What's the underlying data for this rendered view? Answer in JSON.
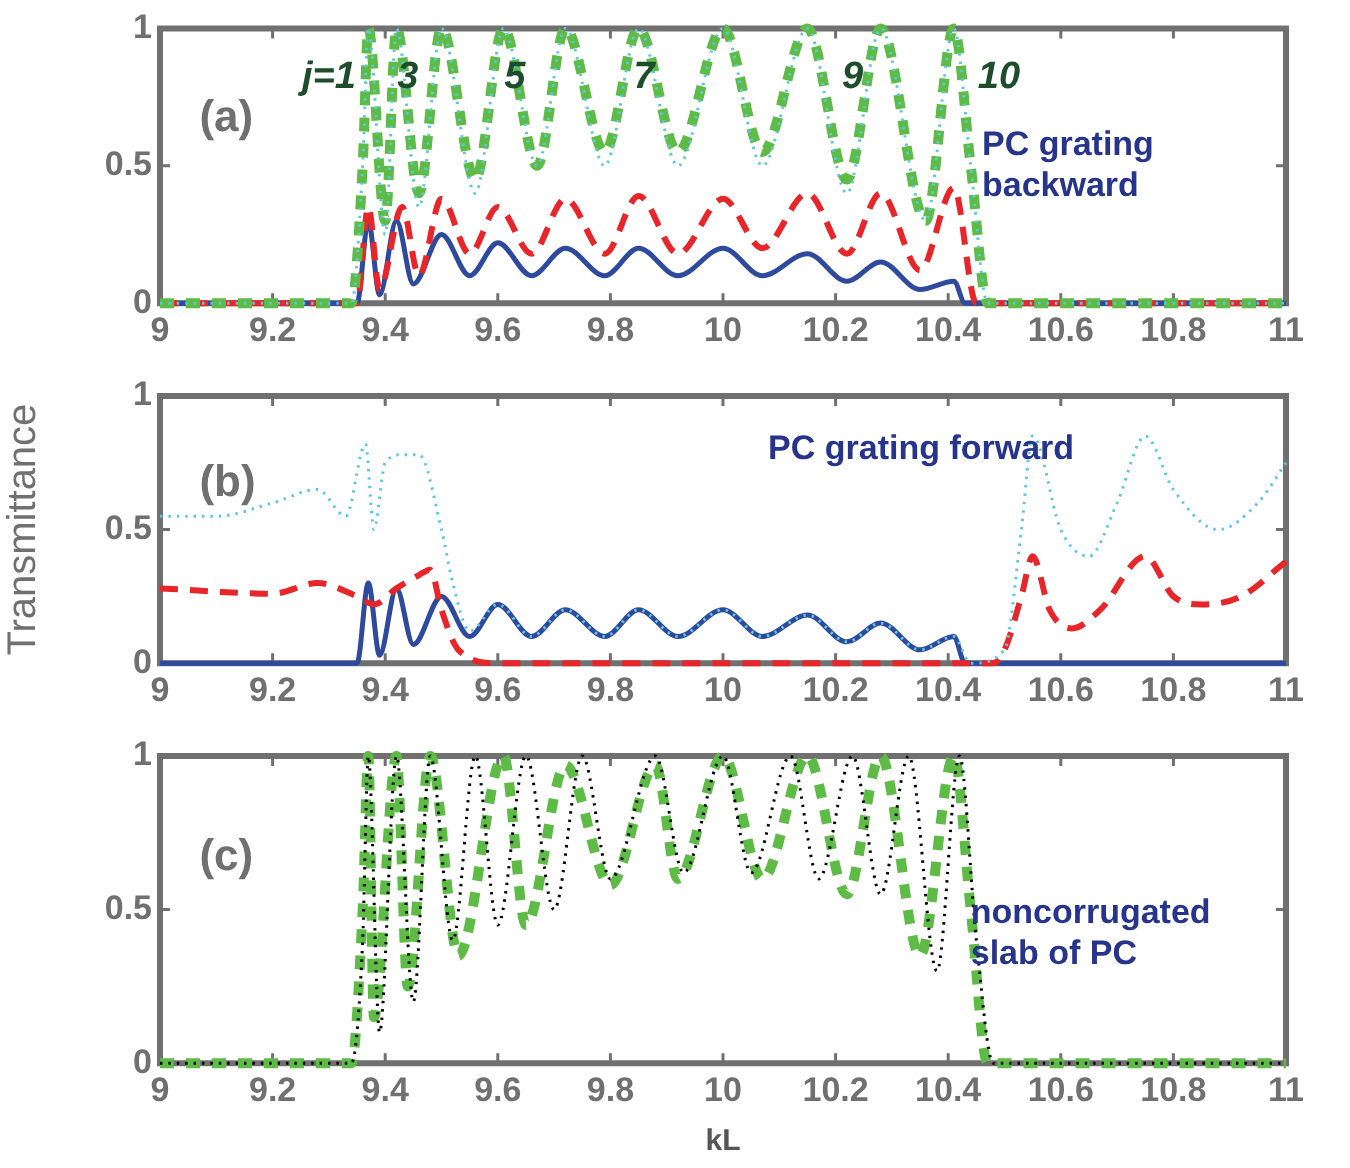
{
  "chart_data": [
    {
      "type": "line",
      "xlim": [
        9,
        11
      ],
      "ylim": [
        0,
        1
      ],
      "xticks": [
        9,
        9.2,
        9.4,
        9.6,
        9.8,
        10,
        10.2,
        10.4,
        10.6,
        10.8,
        11
      ],
      "yticks": [
        0,
        0.5,
        1
      ],
      "grid": false,
      "legend": false,
      "marker": "none",
      "annotations": [
        "(a)",
        "PC grating backward",
        "j=1",
        "3",
        "5",
        "7",
        "9",
        "10"
      ],
      "series": [
        {
          "color": "#5bc8dc",
          "line_style": "dotted",
          "x": [
            9,
            9.34,
            9.36,
            9.37,
            9.4,
            9.42,
            9.46,
            9.5,
            9.56,
            9.61,
            9.67,
            9.72,
            9.79,
            9.85,
            9.92,
            10,
            10.07,
            10.15,
            10.22,
            10.28,
            10.36,
            10.41,
            10.44,
            10.47,
            11
          ],
          "values": [
            0,
            0,
            0.5,
            1,
            0.25,
            1,
            0.35,
            1,
            0.4,
            1,
            0.5,
            1,
            0.5,
            1,
            0.5,
            1,
            0.5,
            1,
            0.4,
            1,
            0.3,
            1,
            0.5,
            0,
            0
          ]
        },
        {
          "color": "#5dbb46",
          "line_style": "dashed",
          "x": [
            9,
            9.34,
            9.36,
            9.37,
            9.4,
            9.42,
            9.46,
            9.5,
            9.56,
            9.61,
            9.67,
            9.72,
            9.79,
            9.85,
            9.92,
            10,
            10.07,
            10.15,
            10.22,
            10.28,
            10.36,
            10.41,
            10.44,
            10.47,
            11
          ],
          "values": [
            0,
            0,
            0.5,
            1,
            0.3,
            1,
            0.4,
            1,
            0.45,
            1,
            0.5,
            1,
            0.55,
            1,
            0.55,
            1,
            0.55,
            1,
            0.45,
            1,
            0.3,
            1,
            0.5,
            0,
            0
          ]
        },
        {
          "color": "#e8262a",
          "line_style": "dashed",
          "x": [
            9,
            9.35,
            9.37,
            9.39,
            9.43,
            9.46,
            9.5,
            9.55,
            9.6,
            9.66,
            9.72,
            9.79,
            9.85,
            9.92,
            10,
            10.07,
            10.15,
            10.22,
            10.28,
            10.35,
            10.41,
            10.45,
            11
          ],
          "values": [
            0,
            0,
            0.35,
            0.05,
            0.35,
            0.1,
            0.38,
            0.18,
            0.35,
            0.18,
            0.38,
            0.18,
            0.39,
            0.18,
            0.38,
            0.2,
            0.4,
            0.18,
            0.4,
            0.12,
            0.42,
            0,
            0
          ]
        },
        {
          "color": "#2e4a9e",
          "line_style": "solid",
          "x": [
            9,
            9.35,
            9.37,
            9.39,
            9.42,
            9.45,
            9.5,
            9.55,
            9.6,
            9.66,
            9.72,
            9.79,
            9.85,
            9.92,
            10,
            10.07,
            10.15,
            10.22,
            10.28,
            10.35,
            10.41,
            10.43,
            11
          ],
          "values": [
            0,
            0,
            0.3,
            0.03,
            0.3,
            0.07,
            0.25,
            0.1,
            0.22,
            0.1,
            0.2,
            0.1,
            0.2,
            0.1,
            0.2,
            0.1,
            0.18,
            0.08,
            0.15,
            0.05,
            0.08,
            0,
            0
          ]
        }
      ]
    },
    {
      "type": "line",
      "ylabel": "Transmittance",
      "xlim": [
        9,
        11
      ],
      "ylim": [
        0,
        1
      ],
      "xticks": [
        9,
        9.2,
        9.4,
        9.6,
        9.8,
        10,
        10.2,
        10.4,
        10.6,
        10.8,
        11
      ],
      "yticks": [
        0,
        0.5,
        1
      ],
      "grid": false,
      "legend": false,
      "marker": "none",
      "annotations": [
        "(b)",
        "PC grating forward"
      ],
      "series": [
        {
          "color": "#5bc8dc",
          "line_style": "dotted",
          "x": [
            9,
            9.1,
            9.2,
            9.28,
            9.33,
            9.365,
            9.38,
            9.4,
            9.43,
            9.46,
            9.5,
            9.52,
            9.55,
            9.6,
            9.66,
            9.72,
            9.79,
            9.85,
            9.92,
            10,
            10.07,
            10.15,
            10.22,
            10.28,
            10.35,
            10.41,
            10.44,
            10.5,
            10.53,
            10.55,
            10.6,
            10.65,
            10.7,
            10.75,
            10.8,
            10.88,
            10.95,
            11
          ],
          "values": [
            0.55,
            0.55,
            0.6,
            0.65,
            0.55,
            0.82,
            0.5,
            0.75,
            0.78,
            0.78,
            0.5,
            0.3,
            0.12,
            0.22,
            0.1,
            0.2,
            0.1,
            0.2,
            0.1,
            0.2,
            0.1,
            0.18,
            0.08,
            0.15,
            0.05,
            0.1,
            0,
            0.05,
            0.5,
            0.85,
            0.5,
            0.4,
            0.6,
            0.85,
            0.65,
            0.5,
            0.6,
            0.75
          ]
        },
        {
          "color": "#e8262a",
          "line_style": "dashed",
          "x": [
            9,
            9.2,
            9.28,
            9.35,
            9.38,
            9.42,
            9.46,
            9.48,
            9.5,
            9.53,
            9.6,
            10.48,
            10.5,
            10.53,
            10.55,
            10.58,
            10.62,
            10.67,
            10.75,
            10.8,
            10.85,
            10.92,
            11
          ],
          "values": [
            0.28,
            0.26,
            0.3,
            0.25,
            0.22,
            0.28,
            0.33,
            0.35,
            0.2,
            0.05,
            0,
            0,
            0.05,
            0.25,
            0.4,
            0.2,
            0.13,
            0.2,
            0.4,
            0.25,
            0.22,
            0.25,
            0.38
          ]
        },
        {
          "color": "#2e4a9e",
          "line_style": "solid",
          "x": [
            9,
            9.35,
            9.37,
            9.39,
            9.42,
            9.45,
            9.5,
            9.55,
            9.6,
            9.66,
            9.72,
            9.79,
            9.85,
            9.92,
            10,
            10.07,
            10.15,
            10.22,
            10.28,
            10.35,
            10.41,
            10.43,
            11
          ],
          "values": [
            0,
            0,
            0.3,
            0.03,
            0.28,
            0.07,
            0.25,
            0.1,
            0.22,
            0.1,
            0.2,
            0.1,
            0.2,
            0.1,
            0.2,
            0.1,
            0.18,
            0.08,
            0.15,
            0.05,
            0.1,
            0,
            0
          ]
        }
      ]
    },
    {
      "type": "line",
      "xlabel": "kL",
      "xlim": [
        9,
        11
      ],
      "ylim": [
        0,
        1
      ],
      "xticks": [
        9,
        9.2,
        9.4,
        9.6,
        9.8,
        10,
        10.2,
        10.4,
        10.6,
        10.8,
        11
      ],
      "yticks": [
        0,
        0.5,
        1
      ],
      "grid": false,
      "legend": false,
      "marker": "none",
      "annotations": [
        "(c)",
        "noncorrugated slab of PC"
      ],
      "series": [
        {
          "color": "#000000",
          "line_style": "dotted",
          "x": [
            9,
            9.34,
            9.36,
            9.37,
            9.39,
            9.42,
            9.45,
            9.48,
            9.52,
            9.56,
            9.6,
            9.65,
            9.7,
            9.75,
            9.8,
            9.88,
            9.93,
            10,
            10.05,
            10.12,
            10.17,
            10.23,
            10.28,
            10.33,
            10.38,
            10.42,
            10.45,
            10.48,
            11
          ],
          "values": [
            0,
            0,
            0.4,
            1,
            0.1,
            1,
            0.2,
            1,
            0.4,
            1,
            0.45,
            1,
            0.5,
            1,
            0.6,
            1,
            0.62,
            1,
            0.62,
            1,
            0.6,
            1,
            0.55,
            1,
            0.3,
            1,
            0.4,
            0,
            0
          ]
        },
        {
          "color": "#5dbb46",
          "line_style": "dashed",
          "x": [
            9,
            9.34,
            9.36,
            9.37,
            9.38,
            9.42,
            9.44,
            9.48,
            9.53,
            9.61,
            9.65,
            9.72,
            9.8,
            9.88,
            9.92,
            10,
            10.07,
            10.15,
            10.22,
            10.28,
            10.35,
            10.41,
            10.44,
            10.47,
            11
          ],
          "values": [
            0,
            0,
            0.5,
            1,
            0.15,
            1,
            0.25,
            1,
            0.35,
            1,
            0.45,
            0.97,
            0.58,
            0.97,
            0.6,
            1,
            0.6,
            1,
            0.55,
            1,
            0.35,
            1,
            0.5,
            0,
            0
          ]
        }
      ]
    }
  ]
}
